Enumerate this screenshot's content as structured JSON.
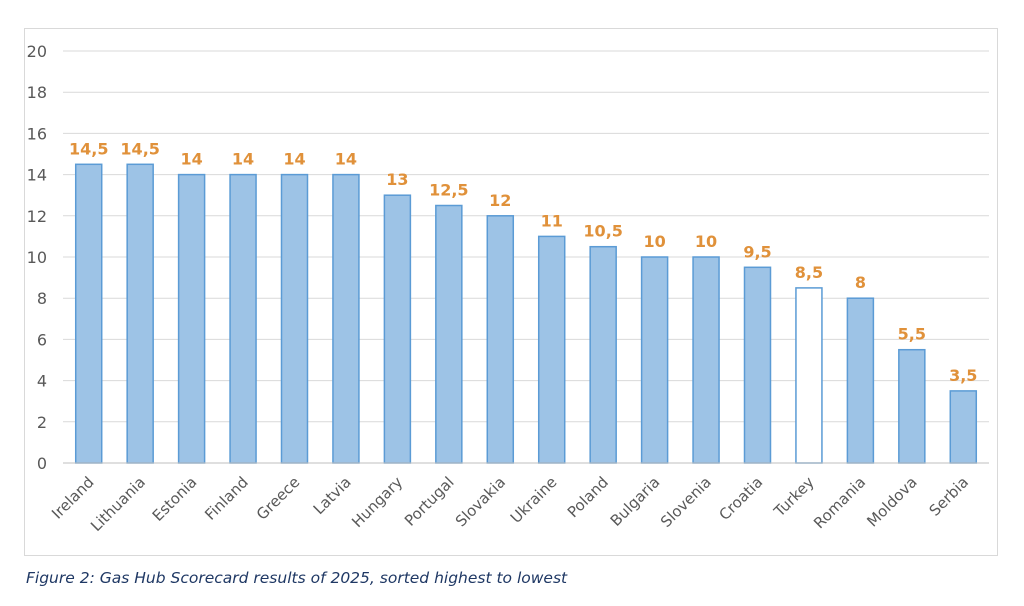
{
  "chart_data": {
    "type": "bar",
    "title": "",
    "xlabel": "",
    "ylabel": "",
    "ylim": [
      0,
      20
    ],
    "yticks": [
      0,
      2,
      4,
      6,
      8,
      10,
      12,
      14,
      16,
      18,
      20
    ],
    "grid": true,
    "categories": [
      "Ireland",
      "Lithuania",
      "Estonia",
      "Finland",
      "Greece",
      "Latvia",
      "Hungary",
      "Portugal",
      "Slovakia",
      "Ukraine",
      "Poland",
      "Bulgaria",
      "Slovenia",
      "Croatia",
      "Turkey",
      "Romania",
      "Moldova",
      "Serbia"
    ],
    "values": [
      14.5,
      14.5,
      14,
      14,
      14,
      14,
      13,
      12.5,
      12,
      11,
      10.5,
      10,
      10,
      9.5,
      8.5,
      8,
      5.5,
      3.5
    ],
    "data_labels": [
      "14,5",
      "14,5",
      "14",
      "14",
      "14",
      "14",
      "13",
      "12,5",
      "12",
      "11",
      "10,5",
      "10",
      "10",
      "9,5",
      "8,5",
      "8",
      "5,5",
      "3,5"
    ],
    "highlight_outline_only": [
      "Turkey"
    ],
    "colors": {
      "bar_fill": "#9dc3e6",
      "bar_stroke": "#5b9bd5",
      "label": "#e0913a",
      "grid": "#d9d9d9",
      "tick": "#595959"
    }
  },
  "caption": "Figure 2: Gas Hub Scorecard results of 2025, sorted highest to lowest"
}
